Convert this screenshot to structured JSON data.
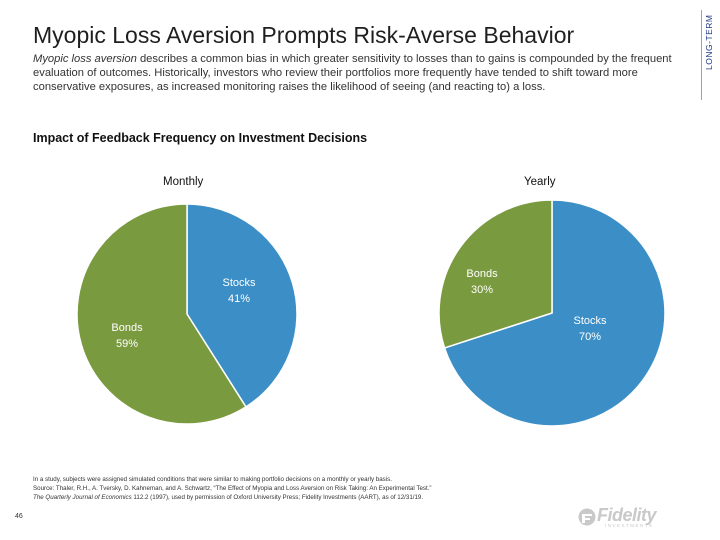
{
  "header": {
    "title": "Myopic Loss Aversion Prompts Risk-Averse Behavior",
    "intro_italic": "Myopic loss aversion",
    "intro_rest": " describes a common bias in which greater sensitivity to losses than to gains is compounded by the frequent evaluation of outcomes. Historically, investors who review their portfolios more frequently have tended to shift toward more conservative exposures, as increased monitoring raises the likelihood of seeing (and reacting to) a loss.",
    "side_label": "LONG-TERM"
  },
  "subtitle": "Impact of Feedback Frequency on Investment Decisions",
  "colors": {
    "stocks": "#3b8fc6",
    "bonds": "#7a9a3f"
  },
  "chart_data": [
    {
      "type": "pie",
      "title": "Monthly",
      "slices": [
        {
          "label": "Stocks",
          "value": 41,
          "display": "41%"
        },
        {
          "label": "Bonds",
          "value": 59,
          "display": "59%"
        }
      ]
    },
    {
      "type": "pie",
      "title": "Yearly",
      "slices": [
        {
          "label": "Stocks",
          "value": 70,
          "display": "70%"
        },
        {
          "label": "Bonds",
          "value": 30,
          "display": "30%"
        }
      ]
    }
  ],
  "footnote": {
    "line1": "In a study, subjects were assigned simulated conditions that were similar to making portfolio decisions on a monthly or yearly basis.",
    "line2": "Source: Thaler, R.H., A. Tversky, D. Kahneman, and A. Schwartz, “The Effect of Myopia and Loss Aversion on Risk Taking: An Experimental Test.”",
    "line3_italic": "The Quarterly Journal of Economics",
    "line3_rest": " 112.2 (1997), used by permission of Oxford University Press; Fidelity Investments (AART), as of 12/31/19."
  },
  "page_number": "46",
  "logo": {
    "name": "Fidelity",
    "sub": "INVESTMENTS",
    "icon": "fidelity-logo-icon"
  }
}
